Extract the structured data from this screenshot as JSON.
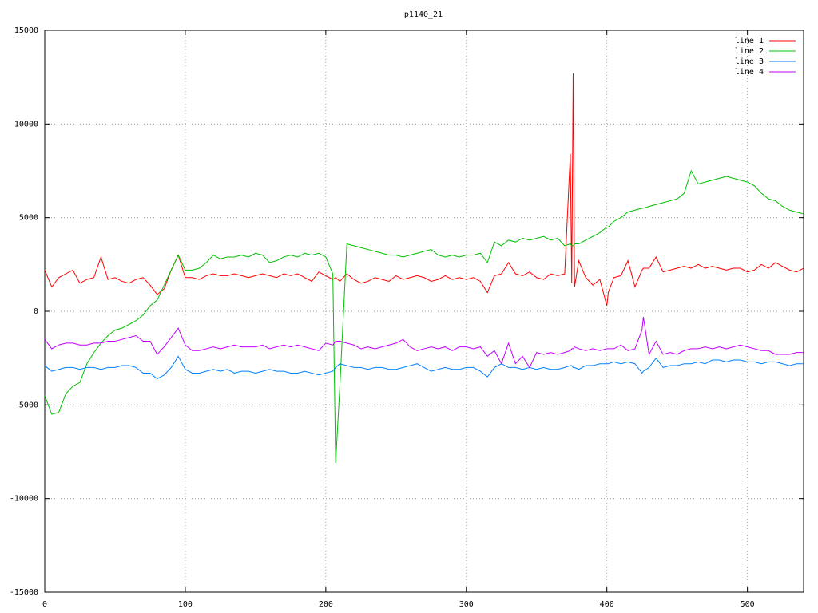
{
  "chart_data": {
    "type": "line",
    "title": "p1140_21",
    "x": [
      0,
      5,
      10,
      15,
      20,
      25,
      30,
      35,
      40,
      45,
      50,
      55,
      60,
      65,
      70,
      75,
      80,
      85,
      90,
      95,
      100,
      105,
      110,
      115,
      120,
      125,
      130,
      135,
      140,
      145,
      150,
      155,
      160,
      165,
      170,
      175,
      180,
      185,
      190,
      195,
      200,
      205,
      207,
      210,
      215,
      220,
      225,
      230,
      235,
      240,
      245,
      250,
      255,
      260,
      265,
      270,
      275,
      280,
      285,
      290,
      295,
      300,
      305,
      310,
      315,
      320,
      325,
      330,
      335,
      340,
      345,
      350,
      355,
      360,
      365,
      370,
      374,
      375,
      376,
      377,
      380,
      385,
      390,
      395,
      400,
      401,
      405,
      410,
      415,
      420,
      425,
      426,
      430,
      435,
      440,
      445,
      450,
      455,
      460,
      465,
      470,
      475,
      480,
      485,
      490,
      495,
      500,
      505,
      510,
      515,
      520,
      525,
      530,
      535,
      540
    ],
    "series": [
      {
        "name": "line 1",
        "color": "#ff0000",
        "values": [
          2200,
          1300,
          1800,
          2000,
          2200,
          1500,
          1700,
          1800,
          2900,
          1700,
          1800,
          1600,
          1500,
          1700,
          1800,
          1400,
          900,
          1200,
          2200,
          3000,
          1800,
          1800,
          1700,
          1900,
          2000,
          1900,
          1900,
          2000,
          1900,
          1800,
          1900,
          2000,
          1900,
          1800,
          2000,
          1900,
          2000,
          1800,
          1600,
          2100,
          1900,
          1700,
          1800,
          1600,
          2000,
          1700,
          1500,
          1600,
          1800,
          1700,
          1600,
          1900,
          1700,
          1800,
          1900,
          1800,
          1600,
          1700,
          1900,
          1700,
          1800,
          1700,
          1800,
          1600,
          1000,
          1900,
          2000,
          2600,
          2000,
          1900,
          2100,
          1800,
          1700,
          2000,
          1900,
          2000,
          8400,
          1500,
          12700,
          1300,
          2700,
          1800,
          1400,
          1700,
          300,
          1000,
          1800,
          1900,
          2700,
          1300,
          2200,
          2300,
          2300,
          2900,
          2100,
          2200,
          2300,
          2400,
          2300,
          2500,
          2300,
          2400,
          2300,
          2200,
          2300,
          2300,
          2100,
          2200,
          2500,
          2300,
          2600,
          2400,
          2200,
          2100,
          2300
        ]
      },
      {
        "name": "line 2",
        "color": "#00c000",
        "values": [
          -4500,
          -5500,
          -5400,
          -4400,
          -4000,
          -3800,
          -2800,
          -2200,
          -1700,
          -1300,
          -1000,
          -900,
          -700,
          -500,
          -200,
          300,
          600,
          1400,
          2200,
          3000,
          2200,
          2200,
          2300,
          2600,
          3000,
          2800,
          2900,
          2900,
          3000,
          2900,
          3100,
          3000,
          2600,
          2700,
          2900,
          3000,
          2900,
          3100,
          3000,
          3100,
          2900,
          2000,
          -8100,
          -4000,
          3600,
          3500,
          3400,
          3300,
          3200,
          3100,
          3000,
          3000,
          2900,
          3000,
          3100,
          3200,
          3300,
          3000,
          2900,
          3000,
          2900,
          3000,
          3000,
          3100,
          2600,
          3700,
          3500,
          3800,
          3700,
          3900,
          3800,
          3900,
          4000,
          3800,
          3900,
          3500,
          3600,
          3500,
          3500,
          3600,
          3600,
          3800,
          4000,
          4200,
          4500,
          4500,
          4800,
          5000,
          5300,
          5400,
          5500,
          5500,
          5600,
          5700,
          5800,
          5900,
          6000,
          6300,
          7500,
          6800,
          6900,
          7000,
          7100,
          7200,
          7100,
          7000,
          6900,
          6700,
          6300,
          6000,
          5900,
          5600,
          5400,
          5300,
          5200
        ]
      },
      {
        "name": "line 3",
        "color": "#0080ff",
        "values": [
          -2900,
          -3200,
          -3100,
          -3000,
          -3000,
          -3100,
          -3000,
          -3000,
          -3100,
          -3000,
          -3000,
          -2900,
          -2900,
          -3000,
          -3300,
          -3300,
          -3600,
          -3400,
          -3000,
          -2400,
          -3100,
          -3300,
          -3300,
          -3200,
          -3100,
          -3200,
          -3100,
          -3300,
          -3200,
          -3200,
          -3300,
          -3200,
          -3100,
          -3200,
          -3200,
          -3300,
          -3300,
          -3200,
          -3300,
          -3400,
          -3300,
          -3200,
          -3000,
          -2800,
          -2900,
          -3000,
          -3000,
          -3100,
          -3000,
          -3000,
          -3100,
          -3100,
          -3000,
          -2900,
          -2800,
          -3000,
          -3200,
          -3100,
          -3000,
          -3100,
          -3100,
          -3000,
          -3000,
          -3200,
          -3500,
          -3000,
          -2800,
          -3000,
          -3000,
          -3100,
          -3000,
          -3100,
          -3000,
          -3100,
          -3100,
          -3000,
          -2900,
          -2900,
          -3000,
          -3000,
          -3100,
          -2900,
          -2900,
          -2800,
          -2800,
          -2800,
          -2700,
          -2800,
          -2700,
          -2800,
          -3300,
          -3200,
          -3000,
          -2500,
          -3000,
          -2900,
          -2900,
          -2800,
          -2800,
          -2700,
          -2800,
          -2600,
          -2600,
          -2700,
          -2600,
          -2600,
          -2700,
          -2700,
          -2800,
          -2700,
          -2700,
          -2800,
          -2900,
          -2800,
          -2800
        ]
      },
      {
        "name": "line 4",
        "color": "#c000ff",
        "values": [
          -1500,
          -2000,
          -1800,
          -1700,
          -1700,
          -1800,
          -1800,
          -1700,
          -1700,
          -1600,
          -1600,
          -1500,
          -1400,
          -1300,
          -1600,
          -1600,
          -2300,
          -1900,
          -1400,
          -900,
          -1800,
          -2100,
          -2100,
          -2000,
          -1900,
          -2000,
          -1900,
          -1800,
          -1900,
          -1900,
          -1900,
          -1800,
          -2000,
          -1900,
          -1800,
          -1900,
          -1800,
          -1900,
          -2000,
          -2100,
          -1700,
          -1800,
          -1600,
          -1600,
          -1700,
          -1800,
          -2000,
          -1900,
          -2000,
          -1900,
          -1800,
          -1700,
          -1500,
          -1900,
          -2100,
          -2000,
          -1900,
          -2000,
          -1900,
          -2100,
          -1900,
          -1900,
          -2000,
          -1900,
          -2400,
          -2100,
          -2800,
          -1700,
          -2800,
          -2400,
          -3000,
          -2200,
          -2300,
          -2200,
          -2300,
          -2200,
          -2100,
          -2000,
          -2000,
          -1900,
          -2000,
          -2100,
          -2000,
          -2100,
          -2000,
          -2000,
          -2000,
          -1800,
          -2100,
          -2000,
          -1000,
          -300,
          -2300,
          -1600,
          -2300,
          -2200,
          -2300,
          -2100,
          -2000,
          -2000,
          -1900,
          -2000,
          -1900,
          -2000,
          -1900,
          -1800,
          -1900,
          -2000,
          -2100,
          -2100,
          -2300,
          -2300,
          -2300,
          -2200,
          -2200
        ]
      }
    ],
    "xlim": [
      0,
      540
    ],
    "xticks": [
      0,
      100,
      200,
      300,
      400,
      500
    ],
    "ylim": [
      -15000,
      15000
    ],
    "yticks": [
      -15000,
      -10000,
      -5000,
      0,
      5000,
      10000,
      15000
    ],
    "grid": true,
    "legend": "top-right"
  }
}
